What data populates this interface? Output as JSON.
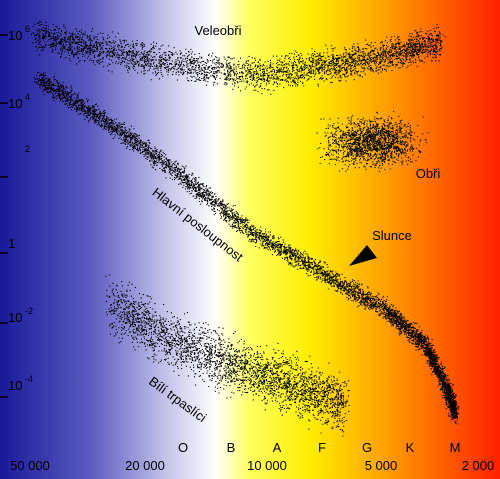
{
  "regions": {
    "supergiants": "Veleobři",
    "giants": "Obři",
    "main_sequence": "Hlavní posloupnost",
    "white_dwarfs": "Bílí trpaslíci",
    "sun": "Slunce"
  },
  "luminosity_labels": [
    {
      "base": "10",
      "sup": "6"
    },
    {
      "base": "10",
      "sup": "4"
    },
    {
      "sup": "2"
    },
    {
      "base": "1"
    },
    {
      "base": "10",
      "sup": "-2"
    },
    {
      "base": "10",
      "sup": "-4"
    }
  ],
  "temperature_labels": [
    "50 000",
    "20 000",
    "10 000",
    "5 000",
    "2 000"
  ],
  "spectral_classes": [
    "O",
    "B",
    "A",
    "F",
    "G",
    "K",
    "M"
  ]
}
